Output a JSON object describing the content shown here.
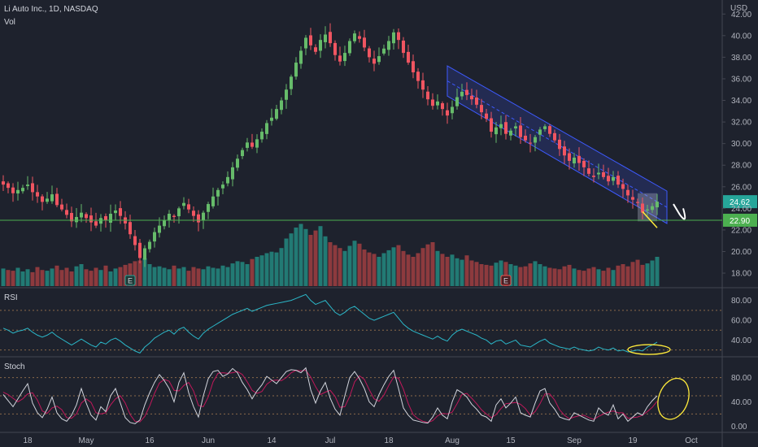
{
  "header": {
    "title": "Li Auto Inc., 1D, NASDAQ",
    "volume_label": "Vol",
    "currency": "USD"
  },
  "colors": {
    "background": "#1e222d",
    "up": "#26a69a",
    "down": "#ef5350",
    "candle_up": "#66bb6a",
    "candle_down": "#f05561",
    "vol_up": "#227a74",
    "vol_down": "#8d3a3e",
    "channel": "#3d5afe",
    "support": "#4caf50",
    "rsi": "#2bb7c8",
    "stoch_k": "#d1d4dc",
    "stoch_d": "#c2185b",
    "annotation": "#ffeb3b"
  },
  "chart_data": [
    {
      "type": "candlestick",
      "name": "price",
      "y_axis_ticks": [
        "42.00",
        "40.00",
        "38.00",
        "36.00",
        "34.00",
        "32.00",
        "30.00",
        "28.00",
        "26.00",
        "24.00",
        "22.00",
        "20.00",
        "18.00"
      ],
      "last_price_label": "24.62",
      "support_label": "22.90",
      "support_level": 22.9,
      "ylim": [
        16.8,
        43.3
      ],
      "x_axis_ticks": [
        "18",
        "May",
        "16",
        "Jun",
        "14",
        "Jul",
        "18",
        "Aug",
        "15",
        "Sep",
        "19",
        "Oct"
      ],
      "earnings_markers": [
        "E",
        "E"
      ],
      "closes": [
        26.2,
        25.9,
        25.4,
        25.7,
        25.9,
        26.2,
        25.5,
        25.1,
        24.6,
        24.9,
        25.3,
        24.3,
        23.9,
        23.4,
        22.8,
        23.2,
        23.6,
        23.1,
        22.7,
        22.4,
        23.1,
        22.9,
        23.5,
        23.8,
        23.3,
        22.6,
        21.6,
        20.6,
        19.4,
        20.3,
        20.9,
        21.8,
        22.4,
        22.9,
        23.5,
        23.2,
        24.0,
        24.5,
        23.9,
        23.3,
        22.7,
        23.6,
        24.4,
        25.1,
        25.7,
        26.2,
        26.9,
        27.8,
        28.6,
        29.4,
        30.1,
        29.7,
        30.4,
        31.1,
        31.9,
        32.4,
        33.2,
        34.0,
        35.0,
        36.2,
        37.5,
        38.6,
        39.8,
        39.1,
        38.5,
        39.6,
        40.1,
        39.3,
        38.2,
        37.6,
        38.4,
        39.5,
        40.2,
        39.7,
        38.9,
        38.0,
        37.4,
        38.1,
        38.8,
        39.5,
        40.3,
        39.6,
        38.4,
        37.5,
        36.6,
        35.8,
        35.0,
        34.1,
        33.5,
        33.9,
        33.2,
        32.6,
        33.4,
        34.3,
        34.8,
        34.5,
        34.1,
        33.6,
        32.9,
        32.3,
        31.1,
        31.5,
        31.8,
        30.9,
        31.2,
        31.6,
        30.6,
        30.3,
        30.0,
        30.6,
        31.3,
        31.6,
        30.9,
        30.3,
        29.5,
        28.9,
        28.4,
        28.7,
        28.2,
        27.8,
        27.2,
        26.9,
        27.3,
        26.9,
        26.5,
        26.9,
        26.2,
        25.8,
        25.2,
        24.8,
        24.5,
        23.6,
        23.9,
        24.2,
        24.62
      ]
    },
    {
      "type": "bar",
      "name": "volume",
      "ylim": [
        0,
        100
      ],
      "values": [
        24,
        22,
        21,
        25,
        20,
        23,
        19,
        26,
        22,
        21,
        24,
        28,
        22,
        25,
        20,
        27,
        30,
        23,
        21,
        25,
        22,
        28,
        20,
        24,
        26,
        29,
        31,
        34,
        35,
        38,
        30,
        26,
        27,
        25,
        23,
        28,
        24,
        26,
        21,
        26,
        24,
        23,
        27,
        25,
        24,
        28,
        26,
        31,
        34,
        33,
        30,
        37,
        40,
        42,
        45,
        47,
        46,
        52,
        65,
        72,
        80,
        85,
        78,
        70,
        76,
        82,
        68,
        60,
        56,
        52,
        48,
        55,
        62,
        58,
        50,
        46,
        44,
        40,
        45,
        49,
        53,
        56,
        48,
        43,
        40,
        45,
        52,
        57,
        60,
        48,
        44,
        40,
        43,
        38,
        36,
        42,
        35,
        33,
        30,
        29,
        28,
        32,
        35,
        33,
        30,
        28,
        26,
        27,
        31,
        34,
        30,
        27,
        25,
        24,
        23,
        27,
        29,
        24,
        22,
        21,
        24,
        26,
        23,
        21,
        25,
        22,
        28,
        30,
        27,
        33,
        36,
        29,
        31,
        35,
        40
      ]
    },
    {
      "type": "line",
      "name": "RSI",
      "y_axis_ticks": [
        "80.00",
        "60.00",
        "40.00"
      ],
      "ylim": [
        24,
        92
      ],
      "levels": [
        70,
        50,
        30
      ],
      "values": [
        52,
        50,
        47,
        49,
        50,
        52,
        48,
        45,
        43,
        45,
        48,
        44,
        41,
        38,
        35,
        38,
        41,
        38,
        35,
        33,
        38,
        36,
        40,
        42,
        39,
        35,
        32,
        29,
        27,
        33,
        37,
        42,
        45,
        48,
        50,
        46,
        51,
        53,
        48,
        44,
        41,
        47,
        51,
        54,
        57,
        60,
        63,
        66,
        68,
        70,
        72,
        69,
        71,
        73,
        75,
        76,
        77,
        78,
        79,
        80,
        82,
        84,
        86,
        80,
        76,
        78,
        80,
        74,
        68,
        65,
        68,
        72,
        74,
        70,
        66,
        62,
        60,
        62,
        64,
        66,
        68,
        62,
        56,
        52,
        49,
        47,
        45,
        43,
        41,
        44,
        41,
        39,
        45,
        49,
        51,
        49,
        47,
        45,
        42,
        40,
        36,
        39,
        40,
        36,
        38,
        40,
        35,
        34,
        33,
        36,
        39,
        41,
        37,
        35,
        33,
        32,
        31,
        33,
        31,
        30,
        29,
        30,
        33,
        31,
        30,
        32,
        29,
        30,
        28,
        29,
        30,
        29,
        33,
        35,
        38
      ]
    },
    {
      "type": "line",
      "name": "Stoch",
      "y_axis_ticks": [
        "80.00",
        "40.00",
        "0.00"
      ],
      "ylim": [
        -9,
        113
      ],
      "levels": [
        80,
        50,
        20
      ],
      "series": [
        {
          "values": [
            52,
            42,
            32,
            45,
            58,
            70,
            38,
            22,
            14,
            28,
            48,
            22,
            12,
            8,
            18,
            35,
            62,
            38,
            18,
            10,
            32,
            24,
            50,
            62,
            38,
            14,
            6,
            4,
            10,
            35,
            55,
            72,
            85,
            75,
            62,
            40,
            72,
            88,
            55,
            32,
            15,
            50,
            78,
            90,
            92,
            82,
            86,
            95,
            88,
            72,
            60,
            45,
            58,
            68,
            82,
            76,
            70,
            80,
            90,
            93,
            92,
            88,
            96,
            60,
            38,
            58,
            72,
            46,
            28,
            18,
            50,
            80,
            90,
            78,
            62,
            40,
            32,
            52,
            68,
            82,
            92,
            62,
            30,
            18,
            10,
            8,
            6,
            5,
            15,
            30,
            18,
            12,
            40,
            60,
            55,
            48,
            36,
            28,
            18,
            15,
            8,
            35,
            45,
            30,
            38,
            48,
            22,
            18,
            15,
            38,
            58,
            62,
            38,
            28,
            15,
            12,
            10,
            22,
            18,
            14,
            10,
            8,
            30,
            22,
            18,
            35,
            12,
            20,
            8,
            15,
            22,
            18,
            32,
            42,
            50
          ]
        },
        {
          "values": [
            56,
            52,
            46,
            40,
            45,
            53,
            55,
            43,
            25,
            21,
            30,
            33,
            27,
            14,
            13,
            20,
            38,
            45,
            39,
            22,
            20,
            22,
            35,
            45,
            50,
            38,
            19,
            8,
            7,
            16,
            33,
            54,
            71,
            77,
            74,
            59,
            58,
            67,
            72,
            58,
            34,
            32,
            48,
            73,
            87,
            88,
            87,
            88,
            90,
            85,
            73,
            59,
            54,
            57,
            69,
            75,
            76,
            75,
            80,
            88,
            92,
            91,
            92,
            81,
            65,
            52,
            56,
            59,
            49,
            31,
            32,
            49,
            73,
            83,
            77,
            60,
            45,
            41,
            51,
            67,
            81,
            79,
            61,
            37,
            19,
            12,
            8,
            6,
            9,
            17,
            21,
            20,
            23,
            37,
            52,
            54,
            46,
            37,
            27,
            20,
            14,
            19,
            29,
            37,
            38,
            39,
            36,
            29,
            18,
            24,
            37,
            53,
            53,
            43,
            27,
            18,
            12,
            15,
            17,
            18,
            14,
            11,
            16,
            20,
            23,
            25,
            22,
            22,
            13,
            14,
            15,
            18,
            24,
            31,
            41
          ]
        }
      ]
    }
  ]
}
